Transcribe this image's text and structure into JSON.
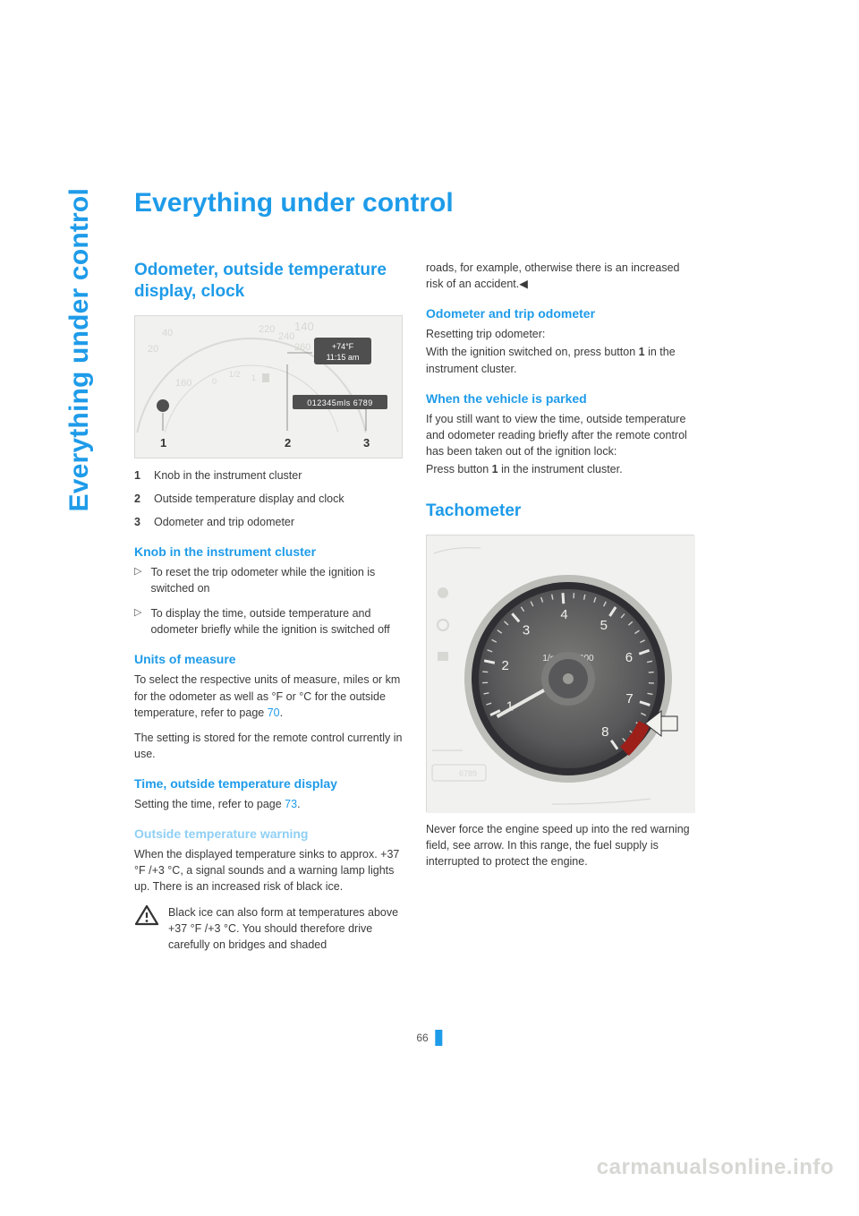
{
  "sidetab": "Everything under control",
  "title": "Everything under control",
  "page_number": "66",
  "watermark": "carmanualsonline.info",
  "left": {
    "section1_title": "Odometer, outside temperature display, clock",
    "fig1": {
      "display_temp": "+74°F",
      "display_time": "11:15 am",
      "display_odo": "012345mls 6789",
      "callouts": [
        "1",
        "2",
        "3"
      ]
    },
    "legend": [
      {
        "n": "1",
        "t": "Knob in the instrument cluster"
      },
      {
        "n": "2",
        "t": "Outside temperature display and clock"
      },
      {
        "n": "3",
        "t": "Odometer and trip odometer"
      }
    ],
    "sub_knob": "Knob in the instrument cluster",
    "knob_items": [
      "To reset the trip odometer while the ignition is switched on",
      "To display the time, outside temperature and odometer briefly while the ignition is switched off"
    ],
    "sub_units": "Units of measure",
    "units_p1a": "To select the respective units of measure, miles or km for the odometer as well as  °F  or  °C for the outside temperature, refer to page ",
    "units_link": "70",
    "units_p1b": ".",
    "units_p2": "The setting is stored for the remote control currently in use.",
    "sub_time": "Time, outside temperature display",
    "time_p_a": "Setting the time, refer to page ",
    "time_link": "73",
    "time_p_b": ".",
    "sub_warn": "Outside temperature warning",
    "warn_p": "When the displayed temperature sinks to approx. +37 °F /+3 °C, a signal sounds and a warning lamp lights up. There is an increased risk of black ice.",
    "warn_box": "Black ice can also form at temperatures above +37 °F /+3 °C. You should therefore drive carefully on bridges and shaded"
  },
  "right": {
    "cont_p": "roads, for example, otherwise there is an increased risk of an accident.",
    "sub_odo": "Odometer and trip odometer",
    "odo_p1": "Resetting trip odometer:",
    "odo_p2a": "With the ignition switched on, press button ",
    "odo_p2_bold": "1",
    "odo_p2b": " in the instrument cluster.",
    "sub_parked": "When the vehicle is parked",
    "parked_p1": "If you still want to view the time, outside temperature and odometer reading briefly after the remote control has been taken out of the ignition lock:",
    "parked_p2a": "Press button ",
    "parked_p2_bold": "1",
    "parked_p2b": " in the instrument cluster.",
    "section2_title": "Tachometer",
    "tach_labels": [
      "1",
      "2",
      "3",
      "4",
      "5",
      "6",
      "7",
      "8"
    ],
    "tach_caption": "1/min x 1000",
    "tach_p": "Never force the engine speed up into the red warning field, see arrow. In this range, the fuel supply is interrupted to protect the engine."
  }
}
